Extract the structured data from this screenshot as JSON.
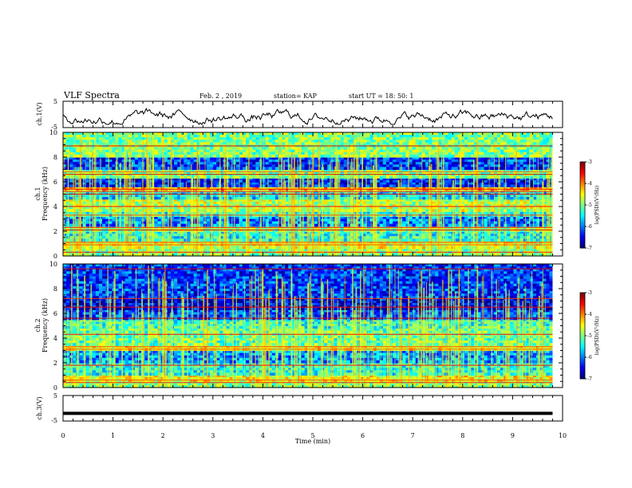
{
  "header": {
    "title": "VLF Spectra",
    "date": "Feb. 2  , 2019",
    "station": "station= KAP",
    "start": "start  UT =   18: 50: 1"
  },
  "chart_data": [
    {
      "type": "line",
      "id": "ch1-waveform",
      "ylabel": "ch.1(V)",
      "ylim": [
        -5,
        5
      ],
      "ytick_labels": [
        "5",
        "-5"
      ],
      "xlim": [
        0,
        10
      ],
      "description_level": [
        -2.6,
        1.0
      ]
    },
    {
      "type": "heatmap",
      "id": "ch1-spectrogram",
      "ylabel": "ch.1\nFrequency (kHz)",
      "ylabel_lines": [
        "ch.1",
        "Frequency (kHz)"
      ],
      "ylim": [
        0,
        10
      ],
      "ytick_labels": [
        "0",
        "2",
        "4",
        "6",
        "8",
        "10"
      ],
      "xlim": [
        0,
        9.8
      ],
      "colorbar": {
        "label": "log(PSD)(V²/Hz)",
        "range": [
          -7,
          -3
        ],
        "tick_labels": [
          "-3",
          "-4",
          "-5",
          "-6",
          "-7"
        ]
      },
      "bands_khz": [
        {
          "f0": 0.0,
          "f1": 0.6,
          "level": -5.0
        },
        {
          "f0": 0.6,
          "f1": 1.2,
          "level": -4.6
        },
        {
          "f0": 1.2,
          "f1": 2.0,
          "level": -5.4
        },
        {
          "f0": 2.0,
          "f1": 2.4,
          "level": -4.9
        },
        {
          "f0": 2.4,
          "f1": 3.2,
          "level": -6.0
        },
        {
          "f0": 3.2,
          "f1": 3.6,
          "level": -5.4
        },
        {
          "f0": 3.6,
          "f1": 4.6,
          "level": -4.8
        },
        {
          "f0": 4.6,
          "f1": 5.3,
          "level": -5.6
        },
        {
          "f0": 5.3,
          "f1": 5.6,
          "level": -4.2
        },
        {
          "f0": 5.6,
          "f1": 6.3,
          "level": -6.4
        },
        {
          "f0": 6.3,
          "f1": 7.0,
          "level": -5.0
        },
        {
          "f0": 7.0,
          "f1": 8.0,
          "level": -6.3
        },
        {
          "f0": 8.0,
          "f1": 10.0,
          "level": -5.0
        }
      ]
    },
    {
      "type": "heatmap",
      "id": "ch2-spectrogram",
      "ylabel": "ch.2\nFrequency (kHz)",
      "ylabel_lines": [
        "ch.2",
        "Frequency (kHz)"
      ],
      "ylim": [
        0,
        10
      ],
      "ytick_labels": [
        "0",
        "2",
        "4",
        "6",
        "8",
        "10"
      ],
      "xlim": [
        0,
        9.8
      ],
      "colorbar": {
        "label": "log(PSD)(V²/Hz)",
        "range": [
          -7,
          -3
        ],
        "tick_labels": [
          "-3",
          "-4",
          "-5",
          "-6",
          "-7"
        ]
      },
      "bands_khz": [
        {
          "f0": 0.0,
          "f1": 0.5,
          "level": -5.0
        },
        {
          "f0": 0.5,
          "f1": 1.0,
          "level": -4.5
        },
        {
          "f0": 1.0,
          "f1": 2.0,
          "level": -5.4
        },
        {
          "f0": 2.0,
          "f1": 3.0,
          "level": -5.9
        },
        {
          "f0": 3.0,
          "f1": 3.4,
          "level": -4.5
        },
        {
          "f0": 3.4,
          "f1": 4.8,
          "level": -5.1
        },
        {
          "f0": 4.8,
          "f1": 5.5,
          "level": -5.3
        },
        {
          "f0": 5.5,
          "f1": 6.3,
          "level": -6.2
        },
        {
          "f0": 6.3,
          "f1": 7.2,
          "level": -6.6
        },
        {
          "f0": 7.2,
          "f1": 10.0,
          "level": -6.3
        }
      ]
    },
    {
      "type": "line",
      "id": "ch3-waveform",
      "ylabel": "ch.3(V)",
      "ylim": [
        -5,
        5
      ],
      "ytick_labels": [
        "5",
        "-5"
      ],
      "xlim": [
        0,
        10
      ],
      "constant_value": -2.0
    }
  ],
  "x_axis": {
    "label": "Time  (min)",
    "range": [
      0,
      10
    ],
    "tick_labels": [
      "0",
      "1",
      "2",
      "3",
      "4",
      "5",
      "6",
      "7",
      "8",
      "9",
      "10"
    ]
  }
}
